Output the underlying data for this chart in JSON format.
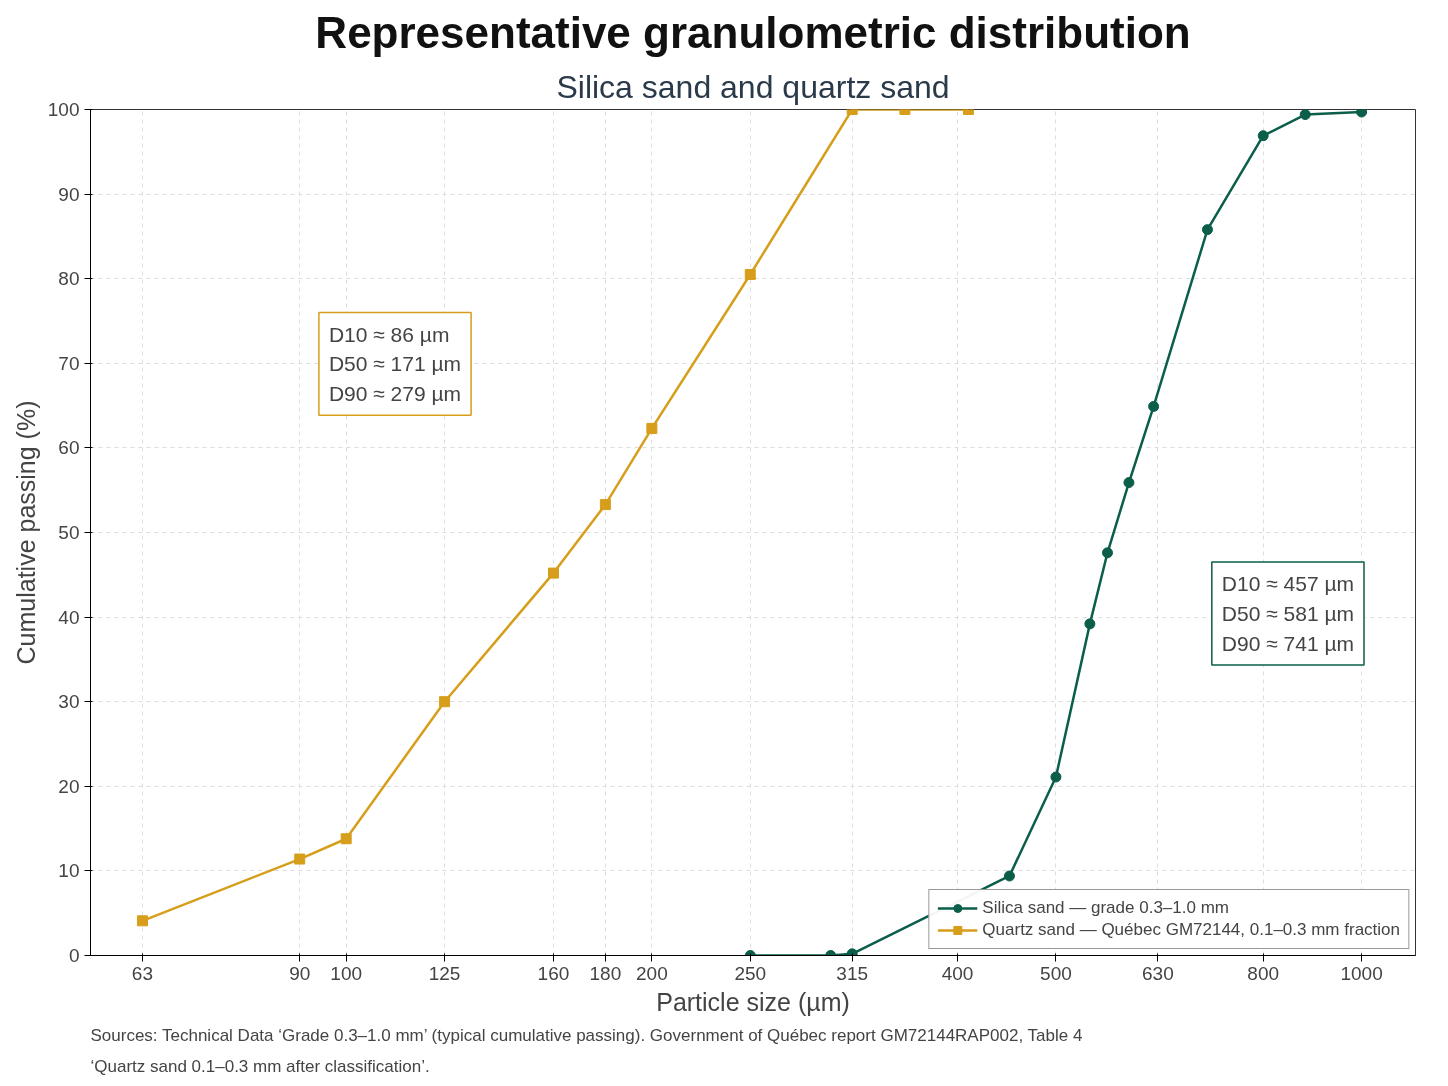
{
  "chart_data": {
    "type": "line",
    "title": "Representative granulometric distribution",
    "subtitle": "Silica sand and quartz sand",
    "xlabel": "Particle size (µm)",
    "ylabel": "Cumulative passing (%)",
    "log": "x",
    "xlim": [
      56,
      1130
    ],
    "xticks": [
      63,
      90,
      100,
      125,
      160,
      180,
      200,
      250,
      315,
      400,
      500,
      630,
      800,
      1000
    ],
    "ylim": [
      0,
      100
    ],
    "yticks": [
      0,
      10,
      20,
      30,
      40,
      50,
      60,
      70,
      80,
      90,
      100
    ],
    "grid": true,
    "legend": "bottom right",
    "series": [
      {
        "name": "Silica sand — grade 0.3–1.0 mm",
        "color": "#0b5e4a",
        "marker": "circle",
        "x": [
          250,
          300,
          315,
          450,
          500,
          540,
          562,
          590,
          624,
          705,
          800,
          880,
          1000
        ],
        "values": [
          0,
          0,
          0.2,
          9.4,
          21.1,
          39.2,
          47.6,
          55.9,
          64.9,
          85.8,
          96.9,
          99.4,
          99.7
        ]
      },
      {
        "name": "Quartz sand — Québec GM72144, 0.1–0.3 mm fraction",
        "color": "#d69e1a",
        "marker": "square",
        "x": [
          63,
          90,
          100,
          125,
          160,
          180,
          200,
          250,
          315,
          355,
          410
        ],
        "values": [
          4.1,
          11.4,
          13.8,
          30,
          45.2,
          53.3,
          62.3,
          80.5,
          100,
          100,
          100
        ]
      }
    ],
    "annotations": [
      "D10 ≈ 457 µm\nD50 ≈ 581 µm\nD90 ≈ 741 µm",
      "D10 ≈ 86 µm\nD50 ≈ 171 µm\nD90 ≈ 279 µm",
      "Sources: Technical Data ‘Grade 0.3–1.0 mm’ (typical cumulative passing). Government of Québec report GM72144RAP002, Table 4 ‘Quartz sand 0.1–0.3 mm after classification’."
    ]
  }
}
